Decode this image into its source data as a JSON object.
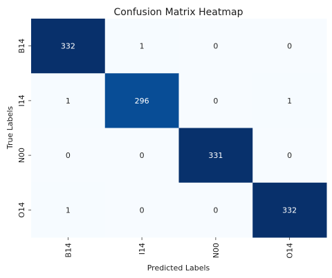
{
  "chart_data": {
    "type": "heatmap",
    "title": "Confusion Matrix Heatmap",
    "xlabel": "Predicted Labels",
    "ylabel": "True Labels",
    "x_categories": [
      "B14",
      "I14",
      "N00",
      "O14"
    ],
    "y_categories": [
      "B14",
      "I14",
      "N00",
      "O14"
    ],
    "values": [
      [
        332,
        1,
        0,
        0
      ],
      [
        1,
        296,
        0,
        1
      ],
      [
        0,
        0,
        331,
        0
      ],
      [
        1,
        0,
        0,
        332
      ]
    ],
    "colormap": "Blues",
    "colorbar": false,
    "grid": false,
    "colors": {
      "low": "#f7fbff",
      "mid": "#4292c6",
      "high": "#08306b",
      "text_light": "#ffffff",
      "text_dark": "#262626"
    }
  }
}
